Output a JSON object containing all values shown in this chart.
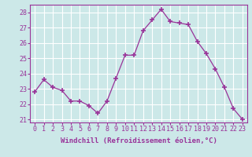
{
  "x": [
    0,
    1,
    2,
    3,
    4,
    5,
    6,
    7,
    8,
    9,
    10,
    11,
    12,
    13,
    14,
    15,
    16,
    17,
    18,
    19,
    20,
    21,
    22,
    23
  ],
  "y": [
    22.8,
    23.6,
    23.1,
    22.9,
    22.2,
    22.2,
    21.9,
    21.4,
    22.2,
    23.7,
    25.2,
    25.2,
    26.8,
    27.5,
    28.2,
    27.4,
    27.3,
    27.2,
    26.1,
    25.3,
    24.3,
    23.1,
    21.7,
    21.0
  ],
  "line_color": "#993399",
  "marker": "+",
  "marker_size": 4,
  "bg_color": "#cce8e8",
  "grid_color": "#ffffff",
  "ylim": [
    20.8,
    28.5
  ],
  "yticks": [
    21,
    22,
    23,
    24,
    25,
    26,
    27,
    28
  ],
  "xlabel": "Windchill (Refroidissement éolien,°C)",
  "xlabel_fontsize": 6.5,
  "tick_fontsize": 6.0,
  "tick_color": "#993399",
  "label_color": "#993399",
  "spine_color": "#993399"
}
